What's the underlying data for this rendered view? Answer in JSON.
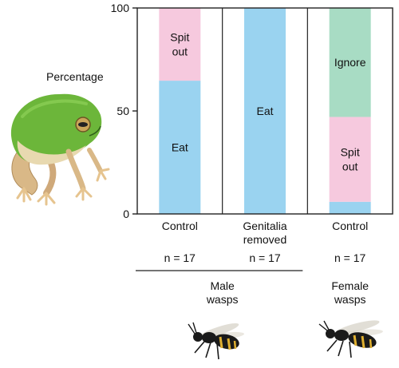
{
  "chart_data": {
    "type": "bar",
    "stacked": true,
    "ylabel": "Percentage",
    "ylim": [
      0,
      100
    ],
    "yticks": [
      0,
      50,
      100
    ],
    "categories": [
      "Control",
      "Genitalia removed",
      "Control"
    ],
    "category_lines": [
      [
        "Control"
      ],
      [
        "Genitalia",
        "removed"
      ],
      [
        "Control"
      ]
    ],
    "sample_sizes": [
      "n = 17",
      "n = 17",
      "n = 17"
    ],
    "groups": [
      {
        "label_lines": [
          "Male",
          "wasps"
        ],
        "categories": [
          0,
          1
        ]
      },
      {
        "label_lines": [
          "Female",
          "wasps"
        ],
        "categories": [
          2
        ]
      }
    ],
    "series": [
      {
        "name": "Eat",
        "label_lines": [
          "Eat"
        ],
        "color": "#9ad3f0",
        "values": [
          64.7,
          100,
          5.9
        ],
        "label_shown": [
          true,
          true,
          false
        ]
      },
      {
        "name": "Spit out",
        "label_lines": [
          "Spit",
          "out"
        ],
        "color": "#f6c9de",
        "values": [
          35.3,
          0,
          41.2
        ],
        "label_shown": [
          true,
          false,
          true
        ]
      },
      {
        "name": "Ignore",
        "label_lines": [
          "Ignore"
        ],
        "color": "#a8dcc4",
        "values": [
          0,
          0,
          52.9
        ],
        "label_shown": [
          false,
          false,
          true
        ]
      }
    ]
  },
  "images": {
    "frog": "tree-frog-photo",
    "male_wasp": "male-wasp-photo",
    "female_wasp": "female-wasp-photo"
  }
}
